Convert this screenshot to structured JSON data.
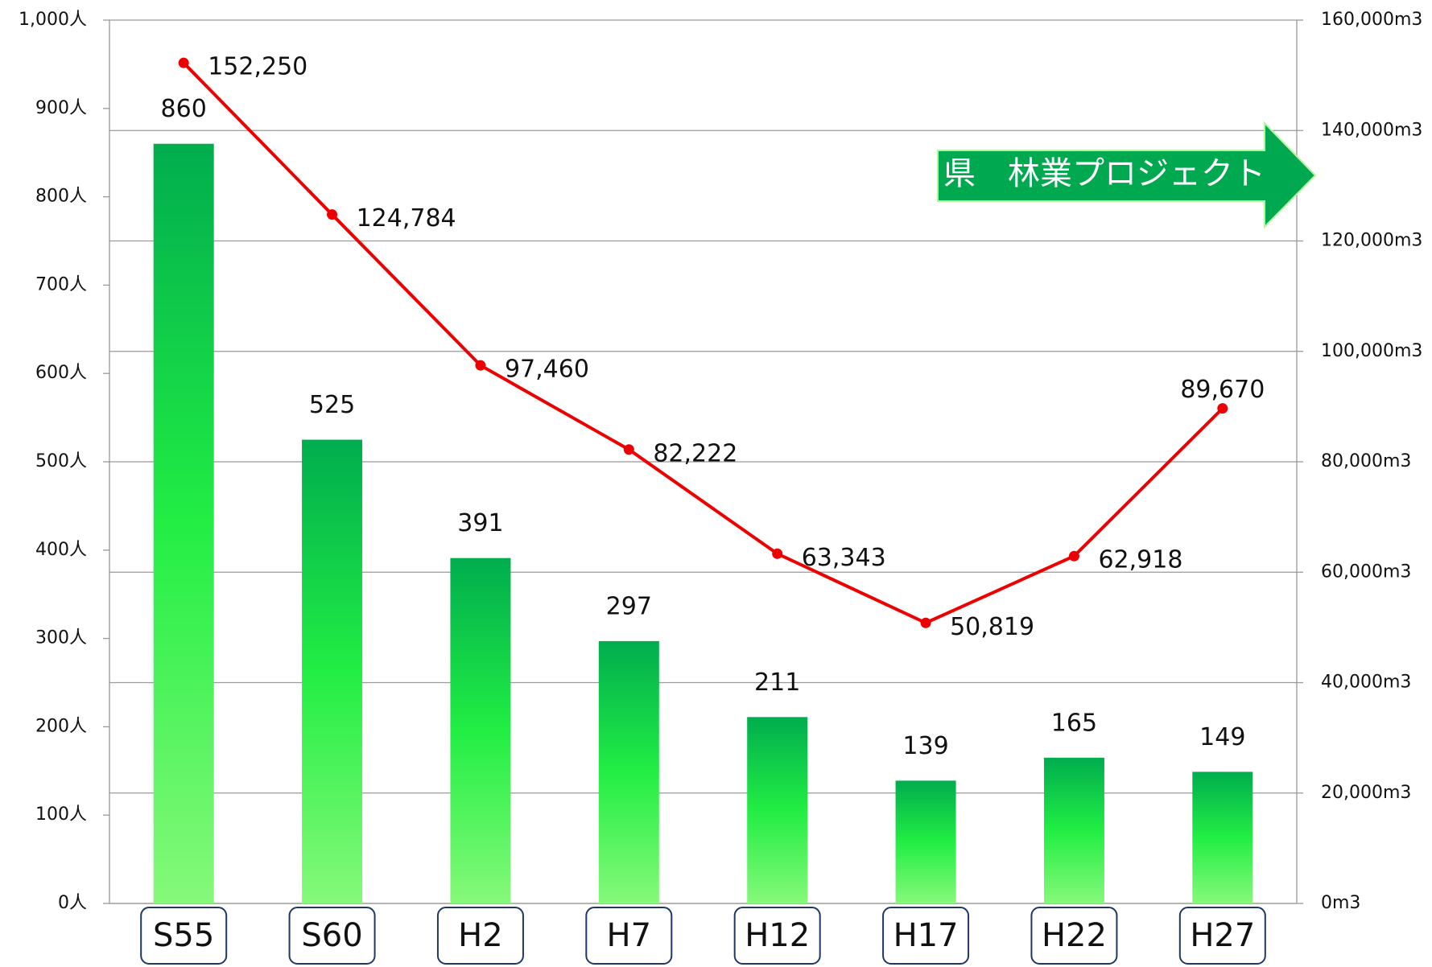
{
  "chart_data": {
    "type": "bar-line",
    "categories": [
      "S55",
      "S60",
      "H2",
      "H7",
      "H12",
      "H17",
      "H22",
      "H27"
    ],
    "series": [
      {
        "type": "bar",
        "color": "#22ee44",
        "values": [
          860,
          525,
          391,
          297,
          211,
          139,
          165,
          149
        ]
      },
      {
        "type": "line",
        "axis": "y2",
        "color": "#ee0000",
        "values": [
          152250,
          124784,
          97460,
          82222,
          63343,
          50819,
          62918,
          89670
        ],
        "value_labels": [
          "152,250",
          "124,784",
          "97,460",
          "82,222",
          "63,343",
          "50,819",
          "62,918",
          "89,670"
        ]
      }
    ],
    "ylim": [
      0,
      1000
    ],
    "yticks": [
      {
        "value": 0,
        "label": "0人"
      },
      {
        "value": 100,
        "label": "100人"
      },
      {
        "value": 200,
        "label": "200人"
      },
      {
        "value": 300,
        "label": "300人"
      },
      {
        "value": 400,
        "label": "400人"
      },
      {
        "value": 500,
        "label": "500人"
      },
      {
        "value": 600,
        "label": "600人"
      },
      {
        "value": 700,
        "label": "700人"
      },
      {
        "value": 800,
        "label": "800人"
      },
      {
        "value": 900,
        "label": "900人"
      },
      {
        "value": 1000,
        "label": "1,000人"
      }
    ],
    "y2lim": [
      0,
      160000
    ],
    "y2ticks": [
      {
        "value": 0,
        "label": "0m3"
      },
      {
        "value": 20000,
        "label": "20,000m3"
      },
      {
        "value": 40000,
        "label": "40,000m3"
      },
      {
        "value": 60000,
        "label": "60,000m3"
      },
      {
        "value": 80000,
        "label": "80,000m3"
      },
      {
        "value": 100000,
        "label": "100,000m3"
      },
      {
        "value": 120000,
        "label": "120,000m3"
      },
      {
        "value": 140000,
        "label": "140,000m3"
      },
      {
        "value": 160000,
        "label": "160,000m3"
      }
    ],
    "grid": "y2",
    "annotation": "県　林業プロジェクト"
  }
}
